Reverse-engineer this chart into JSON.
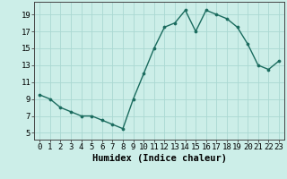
{
  "x": [
    0,
    1,
    2,
    3,
    4,
    5,
    6,
    7,
    8,
    9,
    10,
    11,
    12,
    13,
    14,
    15,
    16,
    17,
    18,
    19,
    20,
    21,
    22,
    23
  ],
  "y": [
    9.5,
    9.0,
    8.0,
    7.5,
    7.0,
    7.0,
    6.5,
    6.0,
    5.5,
    9.0,
    12.0,
    15.0,
    17.5,
    18.0,
    19.5,
    17.0,
    19.5,
    19.0,
    18.5,
    17.5,
    15.5,
    13.0,
    12.5,
    13.5
  ],
  "xlim": [
    -0.5,
    23.5
  ],
  "ylim": [
    4.2,
    20.5
  ],
  "xticks": [
    0,
    1,
    2,
    3,
    4,
    5,
    6,
    7,
    8,
    9,
    10,
    11,
    12,
    13,
    14,
    15,
    16,
    17,
    18,
    19,
    20,
    21,
    22,
    23
  ],
  "yticks": [
    5,
    7,
    9,
    11,
    13,
    15,
    17,
    19
  ],
  "xlabel": "Humidex (Indice chaleur)",
  "line_color": "#1a6b5e",
  "marker": "o",
  "marker_size": 2.2,
  "bg_color": "#cceee8",
  "grid_color": "#aad8d2",
  "tick_fontsize": 6.5,
  "xlabel_fontsize": 7.5,
  "line_width": 1.0
}
